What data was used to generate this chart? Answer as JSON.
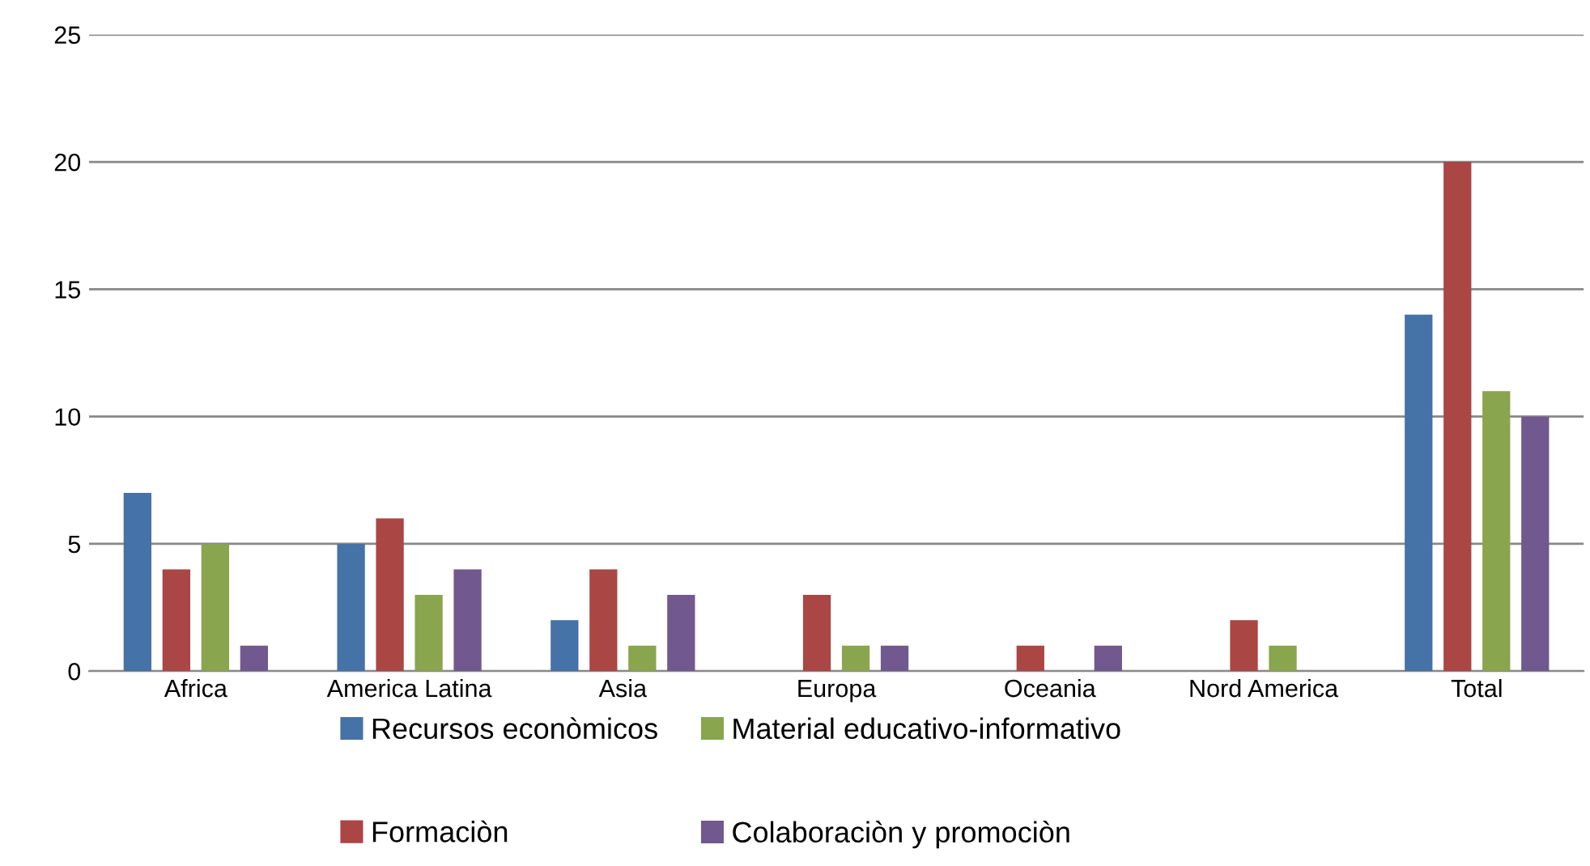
{
  "chart_data": {
    "type": "bar",
    "categories": [
      "Africa",
      "America Latina",
      "Asia",
      "Europa",
      "Oceania",
      "Nord America",
      "Total"
    ],
    "series": [
      {
        "name": "Recursos econòmicos",
        "color": "#4572a7",
        "values": [
          7,
          5,
          2,
          0,
          0,
          0,
          14
        ]
      },
      {
        "name": "Formaciòn",
        "color": "#aa4643",
        "values": [
          4,
          6,
          4,
          3,
          1,
          2,
          20
        ]
      },
      {
        "name": "Material educativo-informativo",
        "color": "#89a54e",
        "values": [
          5,
          3,
          1,
          1,
          0,
          1,
          11
        ]
      },
      {
        "name": "Colaboraciòn y promociòn",
        "color": "#71588f",
        "values": [
          1,
          4,
          3,
          1,
          1,
          0,
          10
        ]
      }
    ],
    "ylim": [
      0,
      25
    ],
    "yticks": [
      0,
      5,
      10,
      15,
      20,
      25
    ],
    "grid": "y",
    "legend": "bottom"
  }
}
